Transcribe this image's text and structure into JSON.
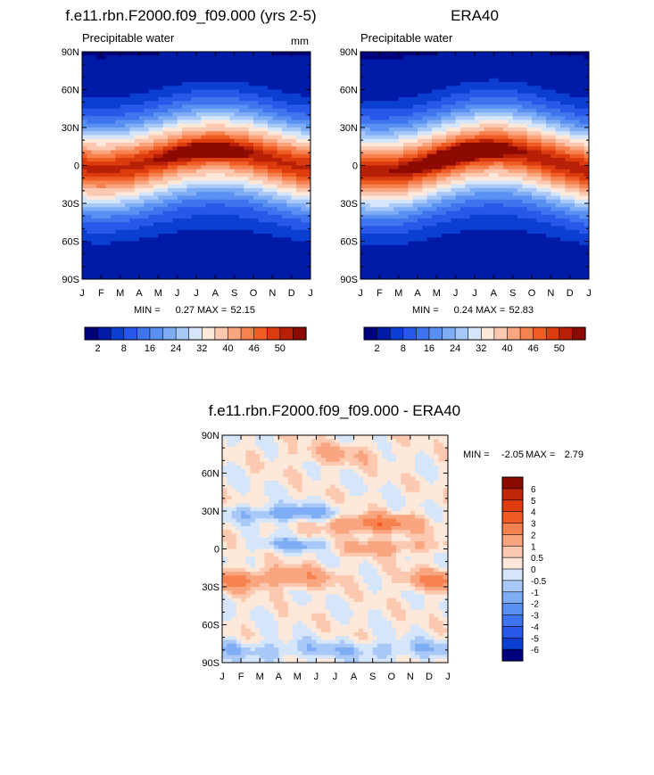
{
  "chart_data": [
    {
      "type": "heatmap",
      "title": "f.e11.rbn.F2000.f09_f09.000 (yrs 2-5)",
      "left_label": "Precipitable water",
      "units": "mm",
      "x_ticks": [
        "J",
        "F",
        "M",
        "A",
        "M",
        "J",
        "J",
        "A",
        "S",
        "O",
        "N",
        "D",
        "J"
      ],
      "y_ticks": [
        "90N",
        "60N",
        "30N",
        "0",
        "30S",
        "60S",
        "90S"
      ],
      "ylim": [
        -90,
        90
      ],
      "stats": {
        "min_label": "MIN =",
        "min": "0.27",
        "max_label": "MAX =",
        "max": "52.15"
      },
      "field": {
        "max": 52.15,
        "itcz_lat": 5,
        "itcz_amp": 8,
        "hot_center_month": 6.5,
        "hot_boost": 4
      }
    },
    {
      "type": "heatmap",
      "title": "ERA40",
      "left_label": "Precipitable water",
      "units": "",
      "x_ticks": [
        "J",
        "F",
        "M",
        "A",
        "M",
        "J",
        "J",
        "A",
        "S",
        "O",
        "N",
        "D",
        "J"
      ],
      "y_ticks": [
        "90N",
        "60N",
        "30N",
        "0",
        "30S",
        "60S",
        "90S"
      ],
      "ylim": [
        -90,
        90
      ],
      "stats": {
        "min_label": "MIN =",
        "min": "0.24",
        "max_label": "MAX =",
        "max": "52.83"
      },
      "field": {
        "max": 52.83,
        "itcz_lat": 4,
        "itcz_amp": 9,
        "hot_center_month": 5.5,
        "hot_boost": 5
      }
    },
    {
      "type": "heatmap",
      "title": "f.e11.rbn.F2000.f09_f09.000 - ERA40",
      "x_ticks": [
        "J",
        "F",
        "M",
        "A",
        "M",
        "J",
        "J",
        "A",
        "S",
        "O",
        "N",
        "D",
        "J"
      ],
      "y_ticks": [
        "90N",
        "60N",
        "30N",
        "0",
        "30S",
        "60S",
        "90S"
      ],
      "ylim": [
        -90,
        90
      ],
      "stats": {
        "min_label": "MIN =",
        "min": "-2.05",
        "max_label": "MAX =",
        "max": "2.79"
      }
    }
  ],
  "colorbars": {
    "top": {
      "labels": [
        "2",
        "8",
        "16",
        "24",
        "32",
        "40",
        "46",
        "50"
      ],
      "colors": [
        "#00007e",
        "#001aa8",
        "#0a3fd2",
        "#2858e8",
        "#3f74ef",
        "#5a90f2",
        "#7eadf5",
        "#a8c8f8",
        "#d5e6fb",
        "#fde8da",
        "#fcc9b0",
        "#f9a680",
        "#f6824f",
        "#ef5d25",
        "#dc3b0d",
        "#b71f06",
        "#8c0a02"
      ]
    },
    "diff": {
      "levels": [
        "6",
        "5",
        "4",
        "3",
        "2",
        "1",
        "0.5",
        "0",
        "-0.5",
        "-1",
        "-2",
        "-3",
        "-4",
        "-5",
        "-6"
      ],
      "colors": [
        "#8c0a02",
        "#c0260a",
        "#df3d10",
        "#f05a25",
        "#f6824f",
        "#f9a680",
        "#fcc9b0",
        "#fde8da",
        "#d5e6fb",
        "#a8c8f8",
        "#7eadf5",
        "#5a90f2",
        "#3f74ef",
        "#2858e8",
        "#0a3fd2",
        "#00007e"
      ]
    }
  }
}
